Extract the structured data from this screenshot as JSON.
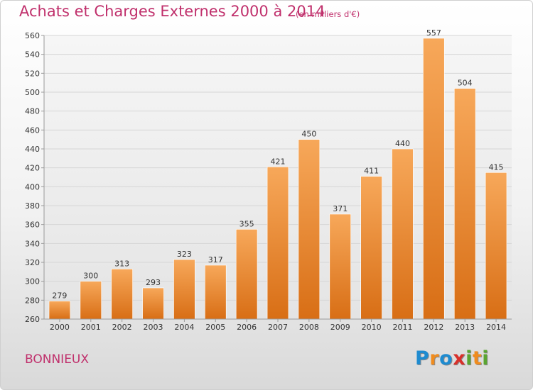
{
  "header": {
    "title": "Achats et Charges Externes 2000 à 2014",
    "subtitle": "(en milliers d'€)"
  },
  "footer": {
    "commune": "BONNIEUX",
    "brand_letters": [
      "P",
      "r",
      "o",
      "x",
      "i",
      "t",
      "i"
    ],
    "brand_colors": [
      "#1e8bd0",
      "#f08c1e",
      "#1e8bd0",
      "#d8302a",
      "#5aa531",
      "#f08c1e",
      "#5aa531"
    ]
  },
  "colors": {
    "bar_light": "#f7a85a",
    "bar_dark": "#d86e15",
    "grid": "#d6d6d6",
    "title": "#c0306c"
  },
  "chart_data": {
    "type": "bar",
    "title": "Achats et Charges Externes 2000 à 2014",
    "subtitle": "(en milliers d'€)",
    "categories": [
      "2000",
      "2001",
      "2002",
      "2003",
      "2004",
      "2005",
      "2006",
      "2007",
      "2008",
      "2009",
      "2010",
      "2011",
      "2012",
      "2013",
      "2014"
    ],
    "values": [
      279,
      300,
      313,
      293,
      323,
      317,
      355,
      421,
      450,
      371,
      411,
      440,
      557,
      504,
      415
    ],
    "ylim": [
      260,
      560
    ],
    "yticks": [
      260,
      280,
      300,
      320,
      340,
      360,
      380,
      400,
      420,
      440,
      460,
      480,
      500,
      520,
      540,
      560
    ],
    "grid": true,
    "xlabel": "",
    "ylabel": ""
  }
}
